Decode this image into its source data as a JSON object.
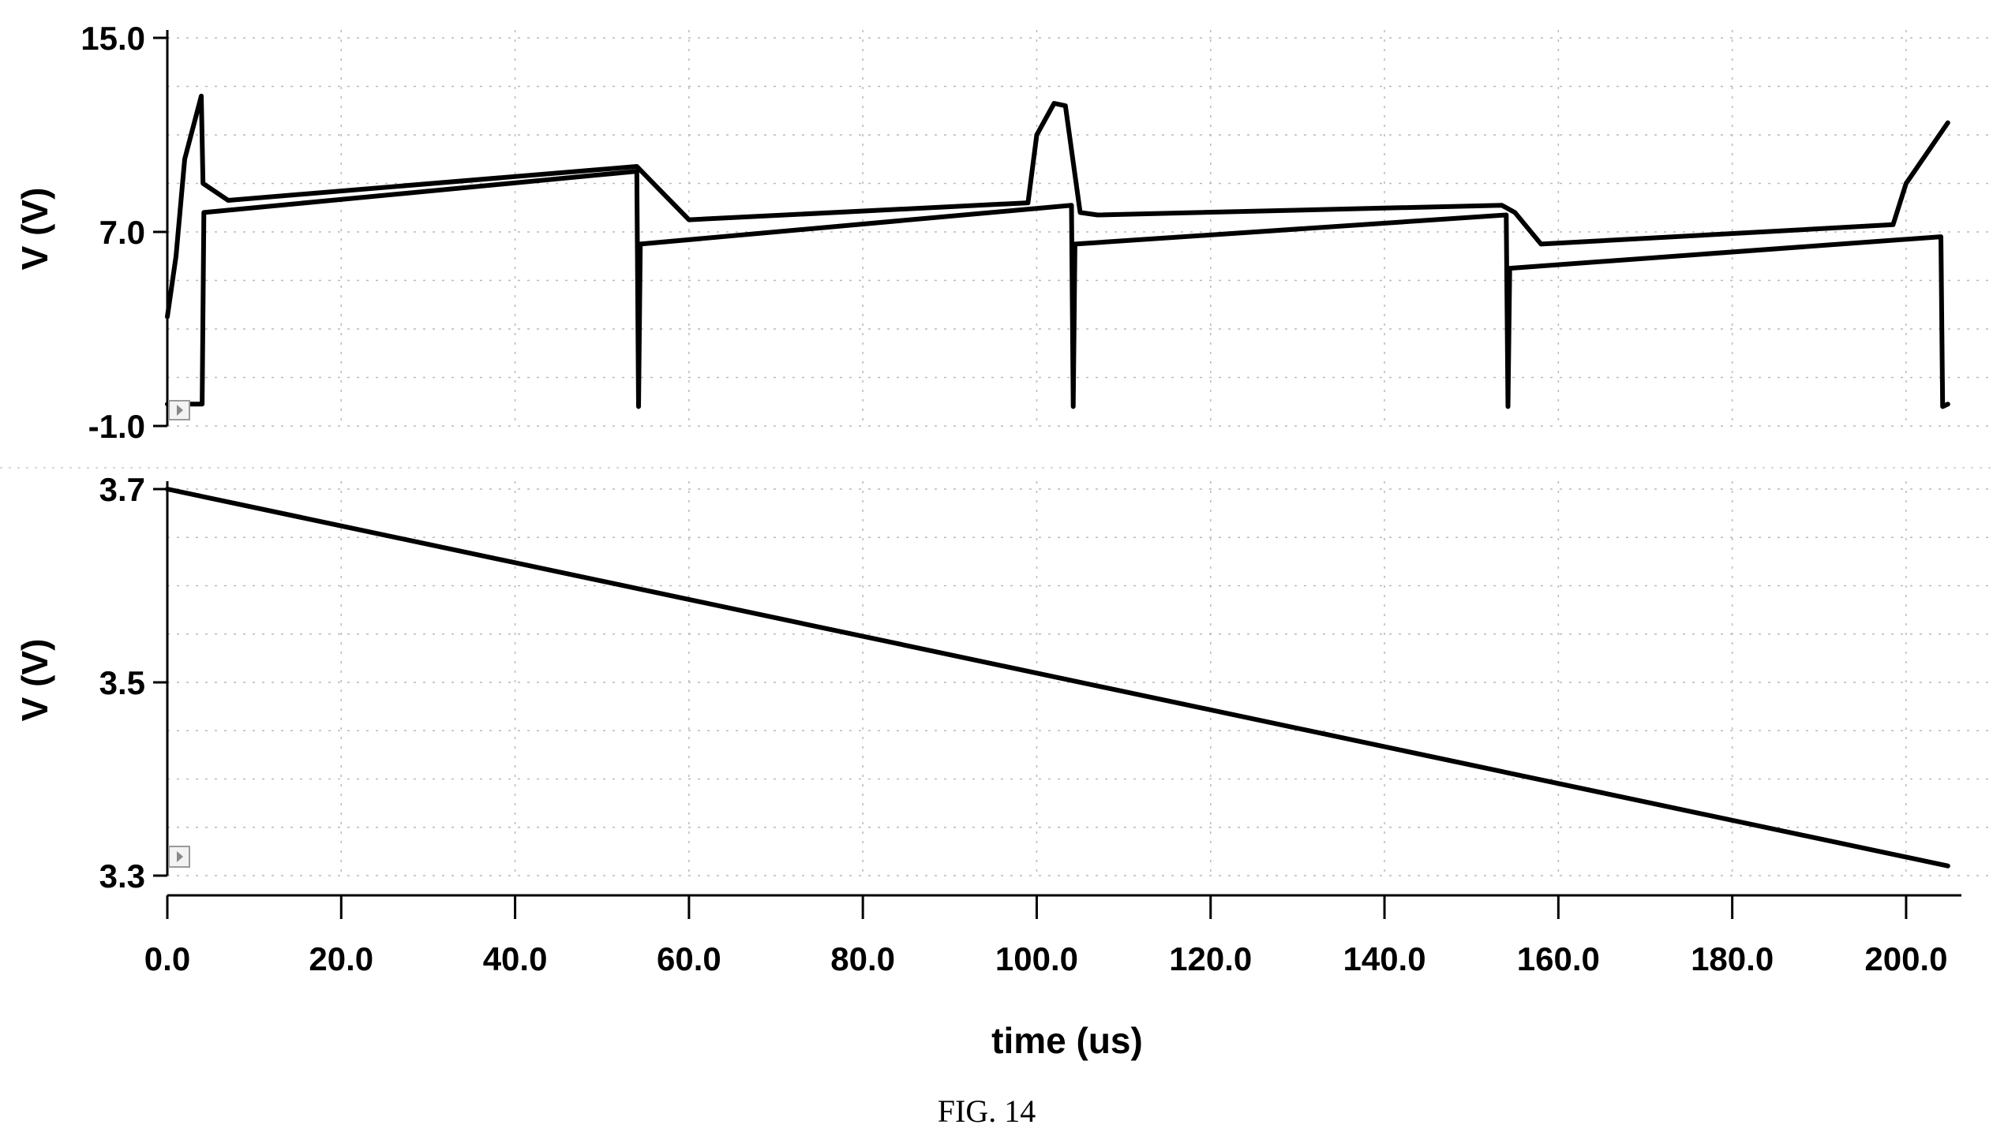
{
  "caption": "FIG. 14",
  "chart_data": [
    {
      "type": "line",
      "panel": "top",
      "title": "",
      "xlabel": "",
      "ylabel": "V (V)",
      "ylim": [
        -1.0,
        15.0
      ],
      "xlim": [
        0,
        205
      ],
      "yticks": [
        {
          "value": 15.0,
          "label": "15.0"
        },
        {
          "value": 7.0,
          "label": "7.0"
        },
        {
          "value": -1.0,
          "label": "-1.0"
        }
      ],
      "grid": true,
      "series": [
        {
          "x": [
            0,
            1,
            2,
            3.9,
            4.1,
            7,
            54,
            57,
            60,
            99,
            100,
            102,
            103.3,
            105,
            107,
            153.5,
            155,
            158,
            198.5,
            200,
            204.8
          ],
          "y": [
            3.5,
            6,
            10,
            12.6,
            9,
            8.3,
            9.7,
            8.6,
            7.5,
            8.2,
            11,
            12.3,
            12.2,
            7.8,
            7.7,
            8.1,
            7.8,
            6.5,
            7.3,
            9,
            11.5
          ]
        },
        {
          "x": [
            0,
            4,
            4.2,
            54,
            54.2,
            54.4,
            104,
            104.2,
            104.4,
            154,
            154.2,
            154.4,
            204,
            204.2,
            204.8
          ],
          "y": [
            -0.1,
            -0.1,
            7.8,
            9.5,
            -0.2,
            6.5,
            8.1,
            -0.2,
            6.5,
            7.7,
            -0.2,
            5.5,
            6.8,
            -0.2,
            -0.1
          ]
        }
      ]
    },
    {
      "type": "line",
      "panel": "bottom",
      "title": "",
      "xlabel": "time (us)",
      "ylabel": "V (V)",
      "ylim": [
        3.3,
        3.7
      ],
      "xlim": [
        0,
        205
      ],
      "yticks": [
        {
          "value": 3.7,
          "label": "3.7"
        },
        {
          "value": 3.5,
          "label": "3.5"
        },
        {
          "value": 3.3,
          "label": "3.3"
        }
      ],
      "xticks": [
        {
          "value": 0,
          "label": "0.0"
        },
        {
          "value": 20,
          "label": "20.0"
        },
        {
          "value": 40,
          "label": "40.0"
        },
        {
          "value": 60,
          "label": "60.0"
        },
        {
          "value": 80,
          "label": "80.0"
        },
        {
          "value": 100,
          "label": "100.0"
        },
        {
          "value": 120,
          "label": "120.0"
        },
        {
          "value": 140,
          "label": "140.0"
        },
        {
          "value": 160,
          "label": "160.0"
        },
        {
          "value": 180,
          "label": "180.0"
        },
        {
          "value": 200,
          "label": "200.0"
        }
      ],
      "grid": true,
      "series": [
        {
          "x": [
            0,
            204.8
          ],
          "y": [
            3.7,
            3.31
          ]
        }
      ]
    }
  ]
}
